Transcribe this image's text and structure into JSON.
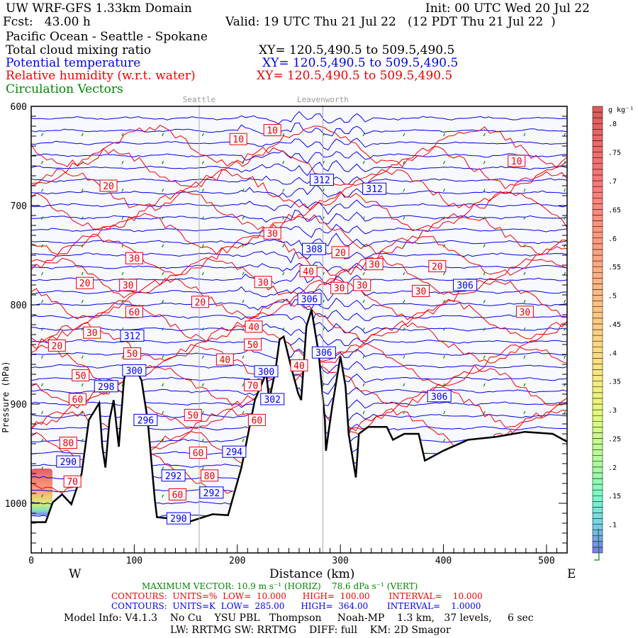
{
  "header": {
    "title": "UW WRF-GFS 1.33km Domain",
    "init": "Init: 00 UTC Wed 20 Jul 22",
    "fcst": "Fcst:   43.00 h",
    "valid": "Valid: 19 UTC Thu 21 Jul 22   (12 PDT Thu 21 Jul 22  )",
    "route": "Pacific Ocean - Seattle - Spokane",
    "fields": [
      {
        "name": "Total cloud mixing ratio",
        "xy": "XY= 120.5,490.5 to 509.5,490.5",
        "color": "#000000"
      },
      {
        "name": "Potential temperature",
        "xy": "XY= 120.5,490.5 to 509.5,490.5",
        "color": "#0000ee"
      },
      {
        "name": "Relative humidity (w.r.t. water)",
        "xy": "XY= 120.5,490.5 to 509.5,490.5",
        "color": "#ee0000"
      },
      {
        "name": "Circulation Vectors",
        "color": "#008800"
      }
    ]
  },
  "footer": {
    "max_vector": "MAXIMUM VECTOR: 10.9 m s⁻¹ (HORIZ)    78.6 dPa s⁻¹ (VERT)",
    "rh_contours": "CONTOURS:  UNITS=%  LOW=  10.000      HIGH=  100.00       INTERVAL=    10.000",
    "theta_contours": "CONTOURS:  UNITS=K  LOW=  285.00      HIGH=  364.00       INTERVAL=    1.0000",
    "xlabel": "Distance (km)",
    "west": "W",
    "east": "E",
    "model_info": "Model Info: V4.1.3    No Cu    YSU PBL   Thompson     Noah-MP    1.3 km,   37 levels,     6 sec",
    "model_info2": "LW: RRTMG SW: RRTMG    DIFF: full    KM: 2D Smagor"
  },
  "chart_data": {
    "type": "cross-section",
    "xlabel": "Distance (km)",
    "ylabel": "Pressure (hPa)",
    "xlim": [
      0,
      520
    ],
    "ylim": [
      1050,
      600
    ],
    "xticks": [
      0,
      100,
      200,
      300,
      400,
      500
    ],
    "yticks": [
      600,
      700,
      800,
      900,
      1000
    ],
    "locations": [
      {
        "name": "Seattle",
        "km": 163
      },
      {
        "name": "Leavenworth",
        "km": 283
      }
    ],
    "terrain": [
      [
        0,
        1019
      ],
      [
        14,
        1019
      ],
      [
        21,
        999
      ],
      [
        30,
        991
      ],
      [
        39,
        1001
      ],
      [
        49,
        970
      ],
      [
        56,
        916
      ],
      [
        66,
        899
      ],
      [
        69,
        943
      ],
      [
        72,
        964
      ],
      [
        76,
        916
      ],
      [
        80,
        896
      ],
      [
        85,
        943
      ],
      [
        90,
        876
      ],
      [
        92,
        866
      ],
      [
        100,
        862
      ],
      [
        107,
        876
      ],
      [
        113,
        916
      ],
      [
        120,
        997
      ],
      [
        122,
        1014
      ],
      [
        142,
        1016
      ],
      [
        155,
        1018
      ],
      [
        176,
        1011
      ],
      [
        191,
        1012
      ],
      [
        204,
        964
      ],
      [
        217,
        896
      ],
      [
        228,
        869
      ],
      [
        231,
        896
      ],
      [
        237,
        866
      ],
      [
        241,
        835
      ],
      [
        245,
        832
      ],
      [
        252,
        862
      ],
      [
        259,
        889
      ],
      [
        262,
        896
      ],
      [
        267,
        822
      ],
      [
        272,
        805
      ],
      [
        279,
        849
      ],
      [
        285,
        916
      ],
      [
        286,
        947
      ],
      [
        292,
        903
      ],
      [
        300,
        852
      ],
      [
        305,
        882
      ],
      [
        308,
        930
      ],
      [
        315,
        974
      ],
      [
        318,
        930
      ],
      [
        327,
        923
      ],
      [
        345,
        923
      ],
      [
        351,
        936
      ],
      [
        362,
        930
      ],
      [
        376,
        930
      ],
      [
        382,
        957
      ],
      [
        400,
        947
      ],
      [
        424,
        936
      ],
      [
        451,
        933
      ],
      [
        479,
        928
      ],
      [
        506,
        930
      ],
      [
        520,
        938
      ]
    ],
    "theta_labels": [
      {
        "text": "312",
        "km": 282,
        "p": 674
      },
      {
        "text": "312",
        "km": 333,
        "p": 683
      },
      {
        "text": "308",
        "km": 302,
        "p": 768
      },
      {
        "text": "306",
        "km": 421,
        "p": 780
      },
      {
        "text": "306",
        "km": 270,
        "p": 794
      },
      {
        "text": "306",
        "km": 284,
        "p": 848
      },
      {
        "text": "306",
        "km": 396,
        "p": 892
      },
      {
        "text": "312",
        "km": 98,
        "p": 831
      },
      {
        "text": "300",
        "km": 100,
        "p": 866
      },
      {
        "text": "298",
        "km": 59,
        "p": 882
      },
      {
        "text": "296",
        "km": 111,
        "p": 916
      },
      {
        "text": "294",
        "km": 197,
        "p": 948
      },
      {
        "text": "292",
        "km": 138,
        "p": 972
      },
      {
        "text": "292",
        "km": 175,
        "p": 977
      },
      {
        "text": "290",
        "km": 36,
        "p": 970
      },
      {
        "text": "290",
        "km": 143,
        "p": 1003
      },
      {
        "text": "300",
        "km": 228,
        "p": 867
      },
      {
        "text": "302",
        "km": 234,
        "p": 895
      }
    ],
    "rh_labels": [
      {
        "text": "10",
        "km": 234,
        "p": 624
      },
      {
        "text": "10",
        "km": 201,
        "p": 633
      },
      {
        "text": "10",
        "km": 471,
        "p": 655
      },
      {
        "text": "20",
        "km": 75,
        "p": 680
      },
      {
        "text": "20",
        "km": 52,
        "p": 778
      },
      {
        "text": "20",
        "km": 164,
        "p": 797
      },
      {
        "text": "20",
        "km": 25,
        "p": 841
      },
      {
        "text": "20",
        "km": 300,
        "p": 747
      },
      {
        "text": "20",
        "km": 394,
        "p": 761
      },
      {
        "text": "30",
        "km": 100,
        "p": 753
      },
      {
        "text": "30",
        "km": 94,
        "p": 780
      },
      {
        "text": "30",
        "km": 59,
        "p": 828
      },
      {
        "text": "30",
        "km": 234,
        "p": 728
      },
      {
        "text": "30",
        "km": 225,
        "p": 777
      },
      {
        "text": "30",
        "km": 333,
        "p": 759
      },
      {
        "text": "30",
        "km": 299,
        "p": 783
      },
      {
        "text": "30",
        "km": 321,
        "p": 780
      },
      {
        "text": "30",
        "km": 378,
        "p": 786
      },
      {
        "text": "30",
        "km": 479,
        "p": 807
      },
      {
        "text": "40",
        "km": 269,
        "p": 766
      },
      {
        "text": "40",
        "km": 216,
        "p": 822
      },
      {
        "text": "40",
        "km": 188,
        "p": 855
      },
      {
        "text": "40",
        "km": 260,
        "p": 861
      },
      {
        "text": "50",
        "km": 215,
        "p": 840
      },
      {
        "text": "50",
        "km": 48,
        "p": 871
      },
      {
        "text": "50",
        "km": 98,
        "p": 849
      },
      {
        "text": "50",
        "km": 157,
        "p": 911
      },
      {
        "text": "60",
        "km": 100,
        "p": 807
      },
      {
        "text": "60",
        "km": 45,
        "p": 895
      },
      {
        "text": "60",
        "km": 219,
        "p": 916
      },
      {
        "text": "60",
        "km": 162,
        "p": 949
      },
      {
        "text": "60",
        "km": 142,
        "p": 991
      },
      {
        "text": "70",
        "km": 215,
        "p": 881
      },
      {
        "text": "70",
        "km": 40,
        "p": 978
      },
      {
        "text": "80",
        "km": 36,
        "p": 939
      },
      {
        "text": "80",
        "km": 173,
        "p": 972
      }
    ],
    "colorbar": {
      "units": "g kg⁻¹",
      "ticks": [
        ".8",
        ".75",
        ".7",
        ".65",
        ".6",
        ".55",
        ".5",
        ".45",
        ".4",
        ".35",
        ".3",
        ".25",
        ".2",
        ".15",
        ".1"
      ],
      "tick_values": [
        0.8,
        0.75,
        0.7,
        0.65,
        0.6,
        0.55,
        0.5,
        0.45,
        0.4,
        0.35,
        0.3,
        0.25,
        0.2,
        0.15,
        0.1
      ],
      "range": [
        0.05,
        0.83
      ]
    },
    "colors": {
      "theta": "#0000ee",
      "rh": "#ee0000",
      "vectors": "#008800",
      "terrain": "#000000",
      "background": "#f8f8ff"
    }
  }
}
